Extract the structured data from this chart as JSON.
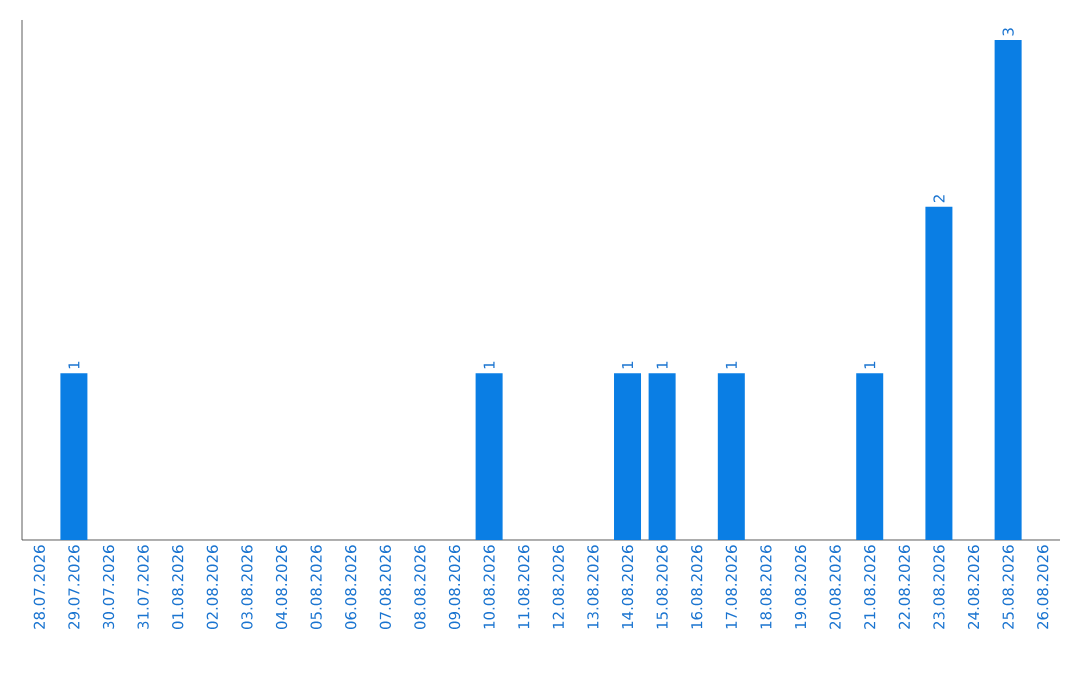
{
  "chart_data": {
    "type": "bar",
    "categories": [
      "28.07.2026",
      "29.07.2026",
      "30.07.2026",
      "31.07.2026",
      "01.08.2026",
      "02.08.2026",
      "03.08.2026",
      "04.08.2026",
      "05.08.2026",
      "06.08.2026",
      "07.08.2026",
      "08.08.2026",
      "09.08.2026",
      "10.08.2026",
      "11.08.2026",
      "12.08.2026",
      "13.08.2026",
      "14.08.2026",
      "15.08.2026",
      "16.08.2026",
      "17.08.2026",
      "18.08.2026",
      "19.08.2026",
      "20.08.2026",
      "21.08.2026",
      "22.08.2026",
      "23.08.2026",
      "24.08.2026",
      "25.08.2026",
      "26.08.2026"
    ],
    "values": [
      0,
      1,
      0,
      0,
      0,
      0,
      0,
      0,
      0,
      0,
      0,
      0,
      0,
      1,
      0,
      0,
      0,
      1,
      1,
      0,
      1,
      0,
      0,
      0,
      1,
      0,
      2,
      0,
      3,
      0
    ],
    "value_labels": [
      null,
      "1",
      null,
      null,
      null,
      null,
      null,
      null,
      null,
      null,
      null,
      null,
      null,
      "1",
      null,
      null,
      null,
      "1",
      "1",
      null,
      "1",
      null,
      null,
      null,
      "1",
      null,
      "2",
      null,
      "3",
      null
    ],
    "color": "#0a7ee4"
  }
}
